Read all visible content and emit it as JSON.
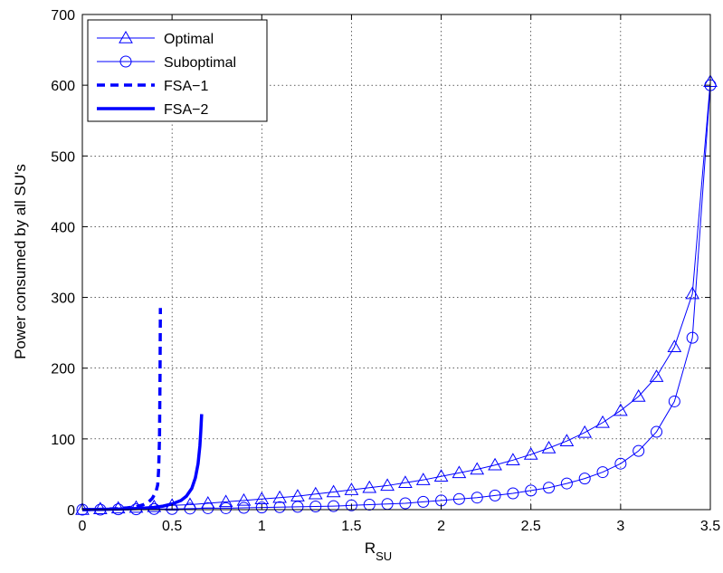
{
  "chart_data": {
    "type": "line",
    "title": "",
    "xlabel": "R",
    "xlabel_sub": "SU",
    "ylabel": "Power consumed by all SU's",
    "xlim": [
      0,
      3.5
    ],
    "ylim": [
      0,
      700
    ],
    "xticks": [
      "0",
      "0.5",
      "1",
      "1.5",
      "2",
      "2.5",
      "3",
      "3.5"
    ],
    "yticks": [
      "0",
      "100",
      "200",
      "300",
      "400",
      "500",
      "600",
      "700"
    ],
    "grid": true,
    "legend_position": "top-left",
    "colors": {
      "series": "#0000ff"
    },
    "series": [
      {
        "name": "Optimal",
        "style": "line-triangle",
        "x": [
          0,
          0.1,
          0.2,
          0.3,
          0.4,
          0.5,
          0.6,
          0.7,
          0.8,
          0.9,
          1.0,
          1.1,
          1.2,
          1.3,
          1.4,
          1.5,
          1.6,
          1.7,
          1.8,
          1.9,
          2.0,
          2.1,
          2.2,
          2.3,
          2.4,
          2.5,
          2.6,
          2.7,
          2.8,
          2.9,
          3.0,
          3.1,
          3.2,
          3.3,
          3.4,
          3.5
        ],
        "y": [
          0,
          1,
          2,
          3,
          4,
          6,
          7,
          9,
          11,
          13,
          15,
          17,
          19,
          22,
          25,
          28,
          31,
          34,
          38,
          42,
          47,
          52,
          57,
          63,
          70,
          78,
          87,
          97,
          109,
          123,
          140,
          160,
          188,
          230,
          305,
          605
        ]
      },
      {
        "name": "Suboptimal",
        "style": "line-circle",
        "x": [
          0,
          0.1,
          0.2,
          0.3,
          0.4,
          0.5,
          0.6,
          0.7,
          0.8,
          0.9,
          1.0,
          1.1,
          1.2,
          1.3,
          1.4,
          1.5,
          1.6,
          1.7,
          1.8,
          1.9,
          2.0,
          2.1,
          2.2,
          2.3,
          2.4,
          2.5,
          2.6,
          2.7,
          2.8,
          2.9,
          3.0,
          3.1,
          3.2,
          3.3,
          3.4,
          3.5
        ],
        "y": [
          0,
          0,
          0.5,
          0.5,
          1,
          1,
          1.5,
          2,
          2,
          2.5,
          3,
          3.5,
          4,
          4.5,
          5,
          6,
          7,
          8,
          9,
          11,
          13,
          15,
          17,
          20,
          23,
          27,
          31,
          37,
          44,
          53,
          65,
          83,
          110,
          153,
          243,
          600
        ]
      },
      {
        "name": "FSA−1",
        "style": "dashed-thick",
        "x": [
          0,
          0.05,
          0.1,
          0.15,
          0.2,
          0.25,
          0.3,
          0.34,
          0.37,
          0.39,
          0.41,
          0.42,
          0.425,
          0.43,
          0.433,
          0.435
        ],
        "y": [
          0,
          0.2,
          0.5,
          0.9,
          1.5,
          2.5,
          4,
          7,
          11,
          16,
          25,
          35,
          55,
          100,
          190,
          285
        ]
      },
      {
        "name": "FSA−2",
        "style": "solid-thick",
        "x": [
          0,
          0.1,
          0.2,
          0.3,
          0.35,
          0.4,
          0.45,
          0.5,
          0.55,
          0.58,
          0.61,
          0.63,
          0.645,
          0.655,
          0.66,
          0.665
        ],
        "y": [
          0,
          0.3,
          0.8,
          1.5,
          2.2,
          3.2,
          5,
          8,
          13,
          19,
          30,
          45,
          65,
          90,
          110,
          135
        ]
      }
    ]
  }
}
